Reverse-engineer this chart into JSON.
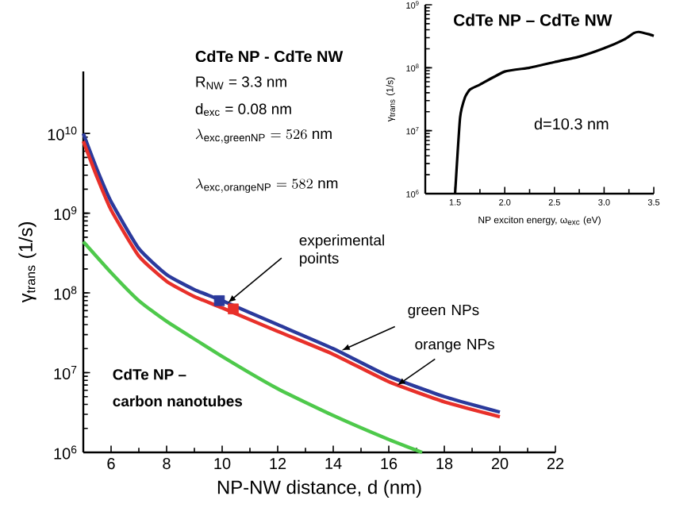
{
  "chart_data": [
    {
      "type": "line",
      "title": "CdTe NP - CdTe NW",
      "xlabel": "NP-NW distance, d (nm)",
      "ylabel": "γ$_{trans}$ (1/s)",
      "xlim": [
        5,
        22
      ],
      "xticks": [
        6,
        8,
        10,
        12,
        14,
        16,
        18,
        20,
        22
      ],
      "ylim": [
        1000000,
        60000000000
      ],
      "yticks": [
        {
          "value": 1000000,
          "label": "10$^{6}$"
        },
        {
          "value": 10000000,
          "label": "10$^{7}$"
        },
        {
          "value": 100000000,
          "label": "10$^{8}$"
        },
        {
          "value": 1000000000,
          "label": "10$^{9}$"
        },
        {
          "value": 10000000000,
          "label": "10$^{10}$"
        }
      ],
      "log": "y",
      "series": [
        {
          "color": "#2b3a9c",
          "x": [
            5,
            5.5,
            6,
            7,
            8,
            9,
            10,
            12,
            14,
            16,
            18,
            20
          ],
          "values": [
            10000000000,
            3500000000,
            1400000000,
            360000000,
            170000000,
            110000000,
            80000000,
            40000000,
            20000000,
            9000000,
            5000000,
            3200000
          ]
        },
        {
          "color": "#e8302a",
          "x": [
            5,
            5.5,
            6,
            7,
            8,
            9,
            10,
            12,
            14,
            16,
            18,
            20
          ],
          "values": [
            8000000000,
            2800000000,
            1100000000,
            290000000,
            140000000,
            90000000,
            65000000,
            33000000,
            17000000,
            7700000,
            4300000,
            2800000
          ]
        },
        {
          "color": "#4ec94b",
          "x": [
            5,
            6,
            7,
            8,
            10,
            12,
            14,
            16,
            17.2
          ],
          "values": [
            440000000,
            180000000,
            80000000,
            44000000,
            16000000,
            6300000,
            2900000,
            1450000,
            1000000
          ]
        },
        {
          "type": "scatter",
          "marker": "square",
          "x": [
            9.9,
            10.4
          ],
          "values": [
            80000000,
            63000000
          ],
          "colors": [
            "#2b3a9c",
            "#e8302a"
          ]
        }
      ],
      "annotations": [
        "R$_{NW}$ = 3.3 nm",
        "d$_{exc}$ = 0.08 nm",
        "\\lambda_{\\mathrm{exc,greenNP}}= 526\\ \\mathrm{nm}",
        "\\lambda_{\\mathrm{exc,orangeNP}}= 582\\ \\mathrm{nm}",
        {
          "text": "experimental points",
          "x": 10.2,
          "y": 75000000
        },
        {
          "text": "green NPs",
          "x": 14.3,
          "y": 19000000
        },
        {
          "text": "orange NPs",
          "x": 16.3,
          "y": 6900000
        },
        "CdTe NP –",
        "carbon nanotubes"
      ]
    },
    {
      "type": "line",
      "title": "CdTe NP – CdTe NW",
      "xlabel": "NP exciton energy, ω$_{exc}$ (eV)",
      "ylabel": "γ$_{trans}$ (1/s)",
      "xlim": [
        1.2,
        3.5
      ],
      "xticks": [
        1.5,
        {
          "value": 2,
          "label": "2.0"
        },
        2.5,
        {
          "value": 3,
          "label": "3.0"
        },
        3.5
      ],
      "ylim": [
        1000000,
        1000000000
      ],
      "yticks": [
        {
          "value": 1000000,
          "label": "10$^{6}$"
        },
        {
          "value": 10000000,
          "label": "10$^{7}$"
        },
        {
          "value": 100000000,
          "label": "10$^{8}$"
        },
        {
          "value": 1000000000,
          "label": "10$^{9}$"
        }
      ],
      "log": "y",
      "series": [
        {
          "color": "#000000",
          "x": [
            1.5,
            1.55,
            1.6,
            1.65,
            1.75,
            2.0,
            2.25,
            2.5,
            2.75,
            3.0,
            3.2,
            3.3,
            3.35,
            3.45,
            3.5
          ],
          "values": [
            1000000,
            16000000,
            34000000,
            45000000,
            54000000,
            87000000,
            100000000,
            123000000,
            150000000,
            204000000,
            280000000,
            355000000,
            370000000,
            340000000,
            320000000
          ]
        }
      ],
      "annotations": [
        "d=10.3 nm"
      ]
    }
  ]
}
